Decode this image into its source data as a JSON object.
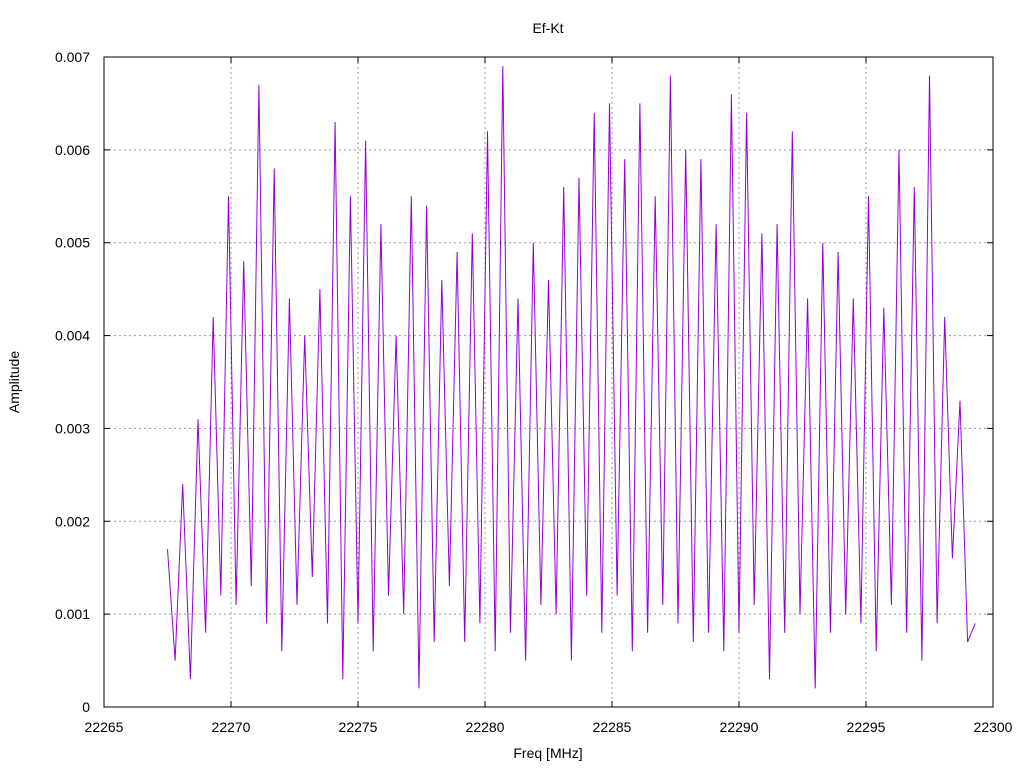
{
  "chart_data": {
    "type": "line",
    "title": "Ef-Kt",
    "xlabel": "Freq [MHz]",
    "ylabel": "Amplitude",
    "xlim": [
      22265,
      22300
    ],
    "ylim": [
      0,
      0.007
    ],
    "xticks": [
      "22265",
      "22270",
      "22275",
      "22280",
      "22285",
      "22290",
      "22295",
      "22300"
    ],
    "yticks": [
      "0",
      "0.001",
      "0.002",
      "0.003",
      "0.004",
      "0.005",
      "0.006",
      "0.007"
    ],
    "grid": true,
    "series": [
      {
        "color": "#9400d3",
        "x": [
          22267.5,
          22267.8,
          22268.1,
          22268.4,
          22268.7,
          22269.0,
          22269.3,
          22269.6,
          22269.9,
          22270.2,
          22270.5,
          22270.8,
          22271.1,
          22271.4,
          22271.7,
          22272.0,
          22272.3,
          22272.6,
          22272.9,
          22273.2,
          22273.5,
          22273.8,
          22274.1,
          22274.4,
          22274.7,
          22275.0,
          22275.3,
          22275.6,
          22275.9,
          22276.2,
          22276.5,
          22276.8,
          22277.1,
          22277.4,
          22277.7,
          22278.0,
          22278.3,
          22278.6,
          22278.9,
          22279.2,
          22279.5,
          22279.8,
          22280.1,
          22280.4,
          22280.7,
          22281.0,
          22281.3,
          22281.6,
          22281.9,
          22282.2,
          22282.5,
          22282.8,
          22283.1,
          22283.4,
          22283.7,
          22284.0,
          22284.3,
          22284.6,
          22284.9,
          22285.2,
          22285.5,
          22285.8,
          22286.1,
          22286.4,
          22286.7,
          22287.0,
          22287.3,
          22287.6,
          22287.9,
          22288.2,
          22288.5,
          22288.8,
          22289.1,
          22289.4,
          22289.7,
          22290.0,
          22290.3,
          22290.6,
          22290.9,
          22291.2,
          22291.5,
          22291.8,
          22292.1,
          22292.4,
          22292.7,
          22293.0,
          22293.3,
          22293.6,
          22293.9,
          22294.2,
          22294.5,
          22294.8,
          22295.1,
          22295.4,
          22295.7,
          22296.0,
          22296.3,
          22296.6,
          22296.9,
          22297.2,
          22297.5,
          22297.8,
          22298.1,
          22298.4,
          22298.7,
          22299.0,
          22299.3
        ],
        "y": [
          0.0017,
          0.0005,
          0.0024,
          0.0003,
          0.0031,
          0.0008,
          0.0042,
          0.0012,
          0.0055,
          0.0011,
          0.0048,
          0.0013,
          0.0067,
          0.0009,
          0.0058,
          0.0006,
          0.0044,
          0.0011,
          0.004,
          0.0014,
          0.0045,
          0.0009,
          0.0063,
          0.0003,
          0.0055,
          0.0009,
          0.0061,
          0.0006,
          0.0052,
          0.0012,
          0.004,
          0.001,
          0.0055,
          0.0002,
          0.0054,
          0.0007,
          0.0046,
          0.0013,
          0.0049,
          0.0007,
          0.0051,
          0.0009,
          0.0062,
          0.0006,
          0.0069,
          0.0008,
          0.0044,
          0.0005,
          0.005,
          0.0011,
          0.0046,
          0.001,
          0.0056,
          0.0005,
          0.0057,
          0.0012,
          0.0064,
          0.0008,
          0.0065,
          0.0012,
          0.0059,
          0.0006,
          0.0065,
          0.0008,
          0.0055,
          0.0011,
          0.0068,
          0.0009,
          0.006,
          0.0007,
          0.0059,
          0.0008,
          0.0052,
          0.0006,
          0.0066,
          0.0008,
          0.0064,
          0.0011,
          0.0051,
          0.0003,
          0.0052,
          0.0008,
          0.0062,
          0.001,
          0.0044,
          0.0002,
          0.005,
          0.0008,
          0.0049,
          0.001,
          0.0044,
          0.0009,
          0.0055,
          0.0006,
          0.0043,
          0.0011,
          0.006,
          0.0008,
          0.0056,
          0.0005,
          0.0068,
          0.0009,
          0.0042,
          0.0016,
          0.0033,
          0.0007,
          0.0009
        ]
      }
    ]
  }
}
